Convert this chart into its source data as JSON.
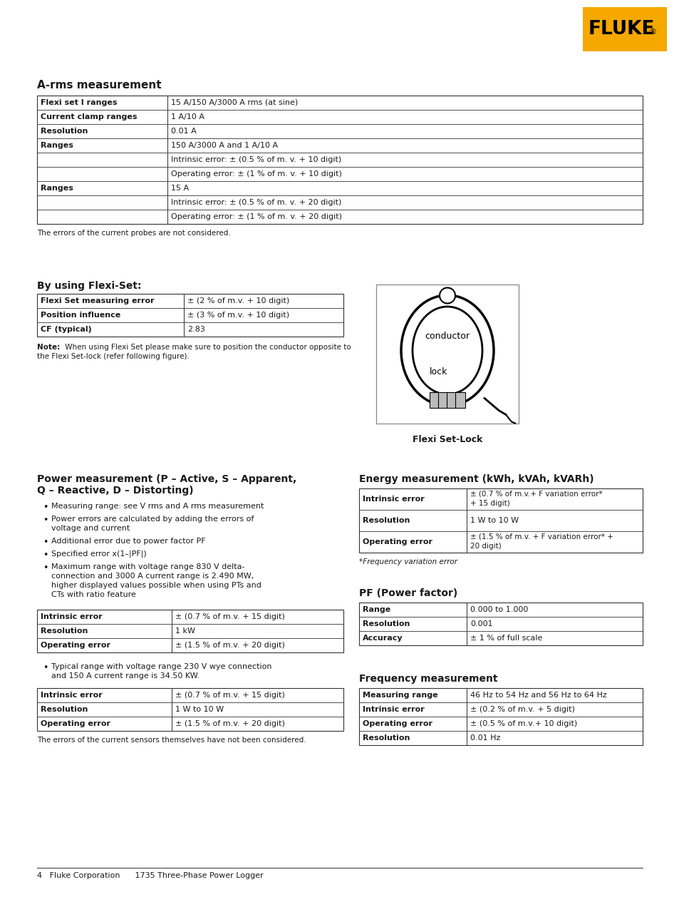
{
  "page_bg": "#ffffff",
  "fluke_orange": "#F5A800",
  "fluke_text": "#1a1a1a",
  "table_border": "#555555",
  "title_arms": "A-rms measurement",
  "arms_table": {
    "rows": [
      [
        "Flexi set I ranges",
        "15 A/150 A/3000 A rms (at sine)"
      ],
      [
        "Current clamp ranges",
        "1 A/10 A"
      ],
      [
        "Resolution",
        "0.01 A"
      ],
      [
        "Ranges",
        "150 A/3000 A and 1 A/10 A"
      ],
      [
        "",
        "Intrinsic error: ± (0.5 % of m. v. + 10 digit)"
      ],
      [
        "",
        "Operating error: ± (1 % of m. v. + 10 digit)"
      ],
      [
        "Ranges",
        "15 A"
      ],
      [
        "",
        "Intrinsic error: ± (0.5 % of m. v. + 20 digit)"
      ],
      [
        "",
        "Operating error: ± (1 % of m. v. + 20 digit)"
      ]
    ]
  },
  "arms_note": "The errors of the current probes are not considered.",
  "flexi_title": "By using Flexi-Set:",
  "flexi_table": {
    "rows": [
      [
        "Flexi Set measuring error",
        "± (2 % of m.v. + 10 digit)"
      ],
      [
        "Position influence",
        "± (3 % of m.v. + 10 digit)"
      ],
      [
        "CF (typical)",
        "2.83"
      ]
    ]
  },
  "flexi_note_bold": "Note:",
  "flexi_note_rest": " When using Flexi Set please make sure to position the conductor opposite to",
  "flexi_note_line2": "the Flexi Set-lock (refer following figure).",
  "flexi_set_lock_label": "Flexi Set-Lock",
  "power_title_line1": "Power measurement (P – Active, S – Apparent,",
  "power_title_line2": "Q – Reactive, D – Distorting)",
  "power_bullets": [
    "Measuring range: see V rms and A rms measurement",
    "Power errors are calculated by adding the errors of\nvoltage and current",
    "Additional error due to power factor PF",
    "Specified error x(1–|PF|)",
    "Maximum range with voltage range 830 V delta-\nconnection and 3000 A current range is 2.490 MW,\nhigher displayed values possible when using PTs and\nCTs with ratio feature"
  ],
  "power_table1": {
    "rows": [
      [
        "Intrinsic error",
        "± (0.7 % of m.v. + 15 digit)"
      ],
      [
        "Resolution",
        "1 kW"
      ],
      [
        "Operating error",
        "± (1.5 % of m.v. + 20 digit)"
      ]
    ]
  },
  "power_bullet2_line1": "Typical range with voltage range 230 V wye connection",
  "power_bullet2_line2": "and 150 A current range is 34.50 KW.",
  "power_table2": {
    "rows": [
      [
        "Intrinsic error",
        "± (0.7 % of m.v. + 15 digit)"
      ],
      [
        "Resolution",
        "1 W to 10 W"
      ],
      [
        "Operating error",
        "± (1.5 % of m.v. + 20 digit)"
      ]
    ]
  },
  "power_note2": "The errors of the current sensors themselves have not been considered.",
  "energy_title": "Energy measurement (kWh, kVAh, kVARh)",
  "energy_table": {
    "rows": [
      [
        "Intrinsic error",
        "± (0.7 % of m.v.+ F variation error*\n+ 15 digit)"
      ],
      [
        "Resolution",
        "1 W to 10 W"
      ],
      [
        "Operating error",
        "± (1.5 % of m.v. + F variation error* +\n20 digit)"
      ]
    ]
  },
  "energy_note": "*Frequency variation error",
  "pf_title": "PF (Power factor)",
  "pf_table": {
    "rows": [
      [
        "Range",
        "0.000 to 1.000"
      ],
      [
        "Resolution",
        "0.001"
      ],
      [
        "Accuracy",
        "± 1 % of full scale"
      ]
    ]
  },
  "freq_title": "Frequency measurement",
  "freq_table": {
    "rows": [
      [
        "Measuring range",
        "46 Hz to 54 Hz and 56 Hz to 64 Hz"
      ],
      [
        "Intrinsic error",
        "± (0.2 % of m.v. + 5 digit)"
      ],
      [
        "Operating error",
        "± (0.5 % of m.v.+ 10 digit)"
      ],
      [
        "Resolution",
        "0.01 Hz"
      ]
    ]
  },
  "footer_text": "4   Fluke Corporation      1735 Three-Phase Power Logger"
}
